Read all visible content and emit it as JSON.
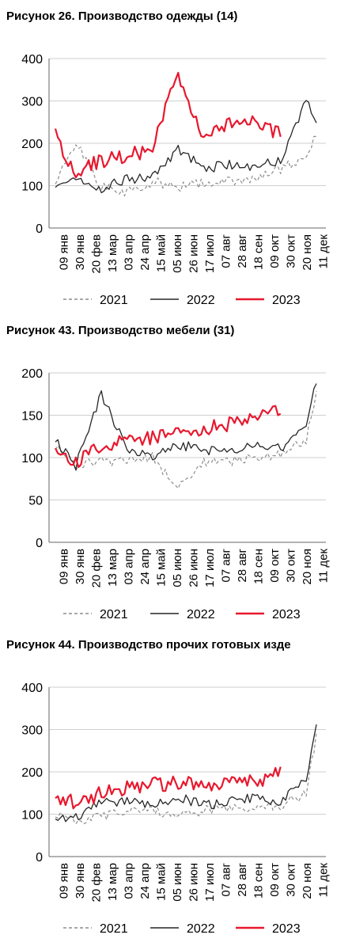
{
  "figures": [
    {
      "title": "Рисунок 26. Производство одежды (14)"
    },
    {
      "title": "Рисунок 43. Производство мебели (31)"
    },
    {
      "title": "Рисунок 44. Производство прочих готовых изде"
    }
  ],
  "legend": {
    "items": [
      "2021",
      "2022",
      "2023"
    ]
  },
  "colors": {
    "s2021": "#8c8c8c",
    "s2022": "#262626",
    "s2023": "#e8182e",
    "grid": "#cfcfcf",
    "axis": "#666666"
  },
  "chart_data": [
    {
      "type": "line",
      "title": "Рисунок 26. Производство одежды (14)",
      "xlabel": "",
      "ylabel": "",
      "ylim": [
        0,
        400
      ],
      "yticks": [
        0,
        100,
        200,
        300,
        400
      ],
      "x_tick_labels": [
        "09 янв",
        "30 янв",
        "20 фев",
        "13 мар",
        "03 апр",
        "24 апр",
        "15 май",
        "05 июн",
        "26 июн",
        "17 июл",
        "07 авг",
        "28 авг",
        "18 сен",
        "09 окт",
        "30 окт",
        "20 ноя",
        "11 дек"
      ],
      "grid": true,
      "legend_position": "bottom",
      "series": [
        {
          "name": "2021",
          "x": [
            1,
            5,
            10,
            15,
            20,
            25,
            30,
            35,
            40,
            45,
            50,
            52
          ],
          "values": [
            105,
            200,
            95,
            85,
            110,
            95,
            105,
            110,
            120,
            140,
            170,
            220
          ]
        },
        {
          "name": "2022",
          "x": [
            1,
            5,
            10,
            15,
            20,
            25,
            30,
            35,
            40,
            45,
            50,
            52
          ],
          "values": [
            100,
            110,
            95,
            115,
            120,
            185,
            140,
            150,
            145,
            160,
            300,
            250
          ]
        },
        {
          "name": "2023",
          "x": [
            1,
            5,
            10,
            15,
            20,
            25,
            30,
            35,
            40,
            45
          ],
          "values": [
            220,
            130,
            160,
            170,
            185,
            370,
            200,
            250,
            260,
            220
          ]
        }
      ]
    },
    {
      "type": "line",
      "title": "Рисунок 43. Производство мебели (31)",
      "xlabel": "",
      "ylabel": "",
      "ylim": [
        0,
        200
      ],
      "yticks": [
        0,
        50,
        100,
        150,
        200
      ],
      "x_tick_labels": [
        "09 янв",
        "30 янв",
        "20 фев",
        "13 мар",
        "03 апр",
        "24 апр",
        "15 май",
        "05 июн",
        "26 июн",
        "17 июл",
        "07 авг",
        "28 авг",
        "18 сен",
        "09 окт",
        "30 окт",
        "20 ноя",
        "11 дек"
      ],
      "grid": true,
      "legend_position": "bottom",
      "series": [
        {
          "name": "2021",
          "x": [
            1,
            5,
            10,
            15,
            20,
            25,
            30,
            35,
            40,
            45,
            50,
            52
          ],
          "values": [
            115,
            90,
            95,
            95,
            100,
            65,
            95,
            95,
            100,
            105,
            120,
            175
          ]
        },
        {
          "name": "2022",
          "x": [
            1,
            5,
            10,
            15,
            20,
            25,
            30,
            35,
            40,
            45,
            50,
            52
          ],
          "values": [
            120,
            90,
            175,
            110,
            100,
            115,
            110,
            105,
            115,
            110,
            135,
            190
          ]
        },
        {
          "name": "2023",
          "x": [
            1,
            5,
            10,
            15,
            20,
            25,
            30,
            35,
            40,
            45
          ],
          "values": [
            115,
            95,
            115,
            120,
            125,
            130,
            135,
            140,
            145,
            155
          ]
        }
      ]
    },
    {
      "type": "line",
      "title": "Рисунок 44. Производство прочих готовых изде",
      "xlabel": "",
      "ylabel": "",
      "ylim": [
        0,
        400
      ],
      "yticks": [
        0,
        100,
        200,
        300,
        400
      ],
      "x_tick_labels": [
        "09 янв",
        "30 янв",
        "20 фев",
        "13 мар",
        "03 апр",
        "24 апр",
        "15 май",
        "05 июн",
        "26 июн",
        "17 июл",
        "07 авг",
        "28 авг",
        "18 сен",
        "09 окт",
        "30 окт",
        "20 ноя",
        "11 дек"
      ],
      "grid": true,
      "legend_position": "bottom",
      "series": [
        {
          "name": "2021",
          "x": [
            1,
            5,
            10,
            15,
            20,
            25,
            30,
            35,
            40,
            45,
            50,
            52
          ],
          "values": [
            100,
            85,
            95,
            105,
            110,
            95,
            110,
            110,
            115,
            120,
            150,
            290
          ]
        },
        {
          "name": "2022",
          "x": [
            1,
            5,
            10,
            15,
            20,
            25,
            30,
            35,
            40,
            45,
            50,
            52
          ],
          "values": [
            90,
            95,
            125,
            130,
            125,
            140,
            120,
            130,
            140,
            130,
            180,
            320
          ]
        },
        {
          "name": "2023",
          "x": [
            1,
            5,
            10,
            15,
            20,
            25,
            30,
            35,
            40,
            45
          ],
          "values": [
            140,
            125,
            150,
            160,
            170,
            175,
            170,
            180,
            175,
            200
          ]
        }
      ]
    }
  ]
}
